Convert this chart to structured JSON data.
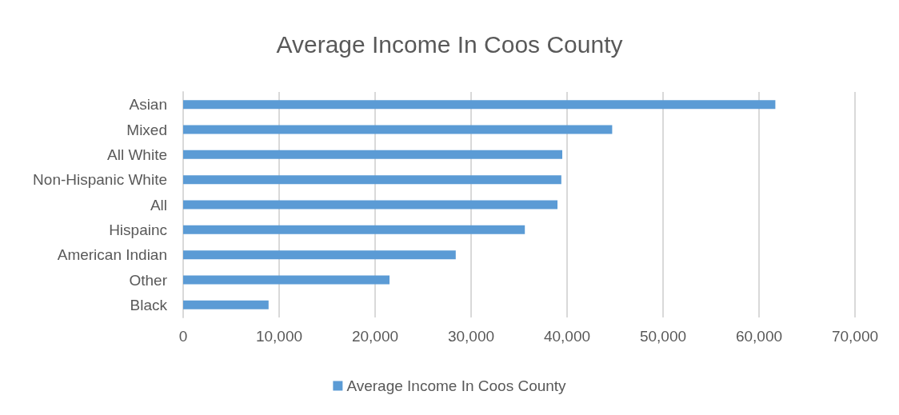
{
  "chart_data": {
    "type": "bar",
    "orientation": "horizontal",
    "title": "Average Income In Coos County",
    "categories": [
      "Asian",
      "Mixed",
      "All White",
      "Non-Hispanic White",
      "All",
      "Hispainc",
      "American Indian",
      "Other",
      "Black"
    ],
    "series": [
      {
        "name": "Average Income In Coos County",
        "color": "#5b9bd5",
        "values": [
          61700,
          44700,
          39500,
          39400,
          39000,
          35600,
          28400,
          21500,
          8900
        ]
      }
    ],
    "xlim": [
      0,
      70000
    ],
    "xticks": [
      0,
      {
        "value": 10000,
        "label": "10,000"
      },
      {
        "value": 20000,
        "label": "20,000"
      },
      {
        "value": 30000,
        "label": "30,000"
      },
      {
        "value": 40000,
        "label": "40,000"
      },
      {
        "value": 50000,
        "label": "50,000"
      },
      {
        "value": 60000,
        "label": "60,000"
      },
      {
        "value": 70000,
        "label": "70,000"
      }
    ],
    "grid": "x",
    "legend": "bottom"
  }
}
